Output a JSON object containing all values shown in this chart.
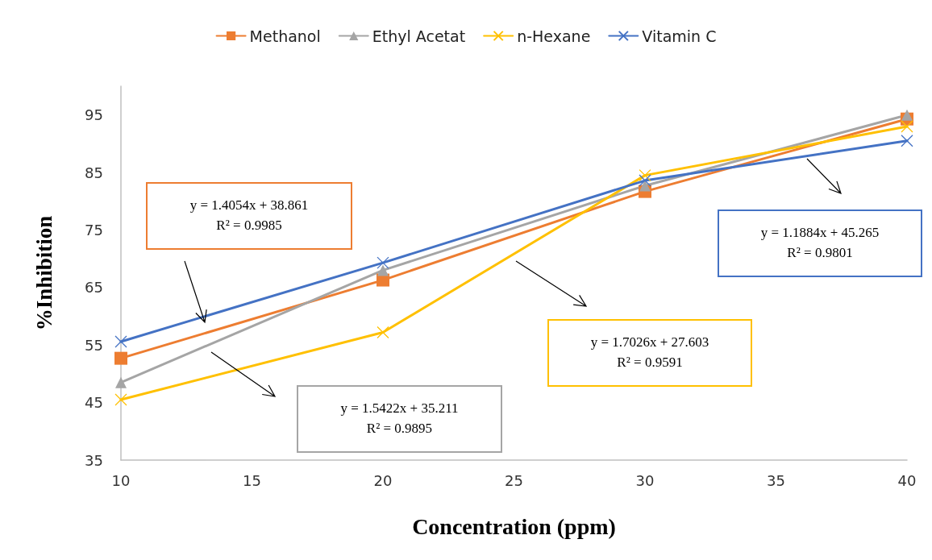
{
  "chart_data": {
    "type": "line",
    "xlabel": "Concentration (ppm)",
    "ylabel": "%Inhibition",
    "x": [
      10,
      20,
      30,
      40
    ],
    "series": [
      {
        "name": "Methanol",
        "color": "#ed7d31",
        "marker": "square",
        "values": [
          52.7,
          66.3,
          81.7,
          94.3
        ]
      },
      {
        "name": "Ethyl Acetat",
        "color": "#a5a5a5",
        "marker": "triangle",
        "values": [
          48.5,
          68,
          82.7,
          95
        ]
      },
      {
        "name": "n-Hexane",
        "color": "#ffc000",
        "marker": "cross",
        "values": [
          45.5,
          57.2,
          84.5,
          93
        ]
      },
      {
        "name": "Vitamin C",
        "color": "#4472c4",
        "marker": "cross",
        "values": [
          55.6,
          69.3,
          83.6,
          90.5
        ]
      }
    ],
    "xlim": [
      10,
      40
    ],
    "xticks": [
      10,
      15,
      20,
      25,
      30,
      35,
      40
    ],
    "ylim": [
      35,
      100
    ],
    "yticks": [
      35,
      45,
      55,
      65,
      75,
      85,
      95
    ],
    "grid": false,
    "legend": "top",
    "line_style": "solid",
    "annotations": [
      "y = 1.4054x + 38.861\nR² = 0.9985",
      "y = 1.5422x + 35.211\nR² = 0.9895",
      "y = 1.7026x + 27.603\nR² = 0.9591",
      "y = 1.1884x + 45.265\nR² = 0.9801"
    ]
  }
}
